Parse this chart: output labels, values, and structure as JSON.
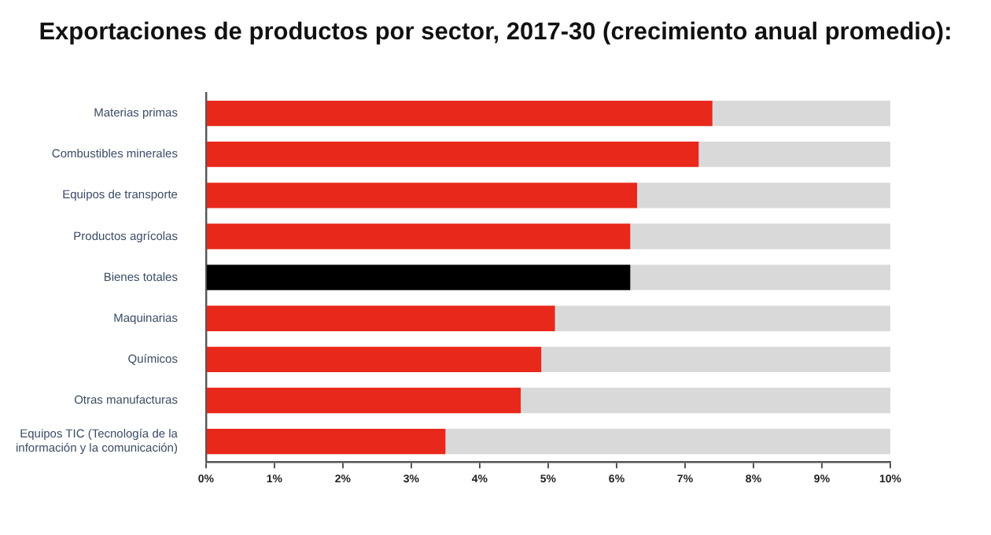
{
  "chart_data": {
    "type": "bar",
    "orientation": "horizontal",
    "title": "Exportaciones de productos por sector, 2017-30 (crecimiento anual promedio):",
    "categories": [
      "Materias primas",
      "Combustibles minerales",
      "Equipos de transporte",
      "Productos agrícolas",
      "Bienes totales",
      "Maquinarias",
      "Químicos",
      "Otras manufacturas",
      "Equipos TIC (Tecnología de la información y la comunicación)"
    ],
    "series": [
      {
        "colors": [
          "#e8281b",
          "#e8281b",
          "#e8281b",
          "#e8281b",
          "#000000",
          "#e8281b",
          "#e8281b",
          "#e8281b",
          "#e8281b"
        ],
        "values": [
          7.4,
          7.2,
          6.3,
          6.2,
          6.2,
          5.1,
          4.9,
          4.6,
          3.5
        ]
      },
      {
        "color": "#d9d9d9",
        "values": [
          2.6,
          2.8,
          3.7,
          3.8,
          3.8,
          4.9,
          5.1,
          5.4,
          6.5
        ]
      }
    ],
    "xlim": [
      0,
      10
    ],
    "xticks": [
      {
        "value": 0,
        "label": "0%"
      },
      {
        "value": 1,
        "label": "1%"
      },
      {
        "value": 2,
        "label": "2%"
      },
      {
        "value": 3,
        "label": "3%"
      },
      {
        "value": 4,
        "label": "4%"
      },
      {
        "value": 5,
        "label": "5%"
      },
      {
        "value": 6,
        "label": "6%"
      },
      {
        "value": 7,
        "label": "7%"
      },
      {
        "value": 8,
        "label": "8%"
      },
      {
        "value": 9,
        "label": "9%"
      },
      {
        "value": 10,
        "label": "10%"
      }
    ],
    "stacked": true,
    "grid": false,
    "legend": false
  }
}
